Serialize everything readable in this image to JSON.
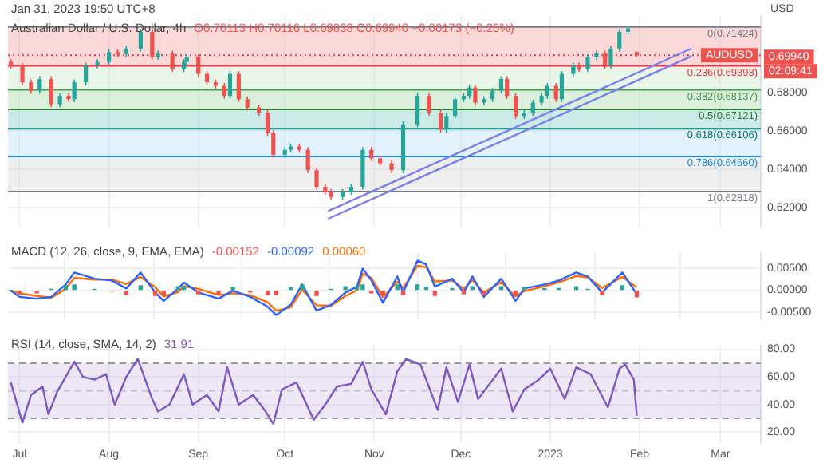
{
  "chart_data": [
    {
      "type": "candlestick",
      "title": "Australian Dollar / U.S. Dollar, 4h",
      "subtitle": "Jan 31, 2023 19:50 UTC+8",
      "ylabel": "USD",
      "annotations": [
        "O0.70113 H0.70116 L0.69838 C0.69940 −0.00173 (−0.25%)",
        "02:09:41",
        {
          "text": "AUDUSD",
          "y": 0.6994
        }
      ],
      "x": [
        "2022-06-28",
        "2022-07-02",
        "2022-07-05",
        "2022-07-08",
        "2022-07-12",
        "2022-07-15",
        "2022-07-18",
        "2022-07-20",
        "2022-07-24",
        "2022-07-28",
        "2022-08-01",
        "2022-08-04",
        "2022-08-07",
        "2022-08-12",
        "2022-08-16",
        "2022-08-18",
        "2022-08-23",
        "2022-08-27",
        "2022-08-28",
        "2022-09-01",
        "2022-09-04",
        "2022-09-07",
        "2022-09-10",
        "2022-09-12",
        "2022-09-15",
        "2022-09-18",
        "2022-09-22",
        "2022-09-25",
        "2022-09-27",
        "2022-10-01",
        "2022-10-03",
        "2022-10-06",
        "2022-10-09",
        "2022-10-12",
        "2022-10-15",
        "2022-10-17",
        "2022-10-21",
        "2022-10-24",
        "2022-10-28",
        "2022-10-31",
        "2022-11-03",
        "2022-11-07",
        "2022-11-11",
        "2022-11-16",
        "2022-11-20",
        "2022-11-24",
        "2022-11-26",
        "2022-11-29",
        "2022-12-02",
        "2022-12-04",
        "2022-12-06",
        "2022-12-09",
        "2022-12-12",
        "2022-12-15",
        "2022-12-17",
        "2022-12-20",
        "2022-12-23",
        "2022-12-26",
        "2022-12-29",
        "2022-12-31",
        "2023-01-03",
        "2023-01-05",
        "2023-01-09",
        "2023-01-11",
        "2023-01-14",
        "2023-01-17",
        "2023-01-20",
        "2023-01-22",
        "2023-01-25",
        "2023-01-28",
        "2023-01-31"
      ],
      "ohlc": [
        [
          0.696,
          0.6975,
          0.6925,
          0.694
        ],
        [
          0.694,
          0.6955,
          0.6838,
          0.6853
        ],
        [
          0.6853,
          0.6868,
          0.6794,
          0.6809
        ],
        [
          0.6809,
          0.6885,
          0.6794,
          0.687
        ],
        [
          0.687,
          0.6885,
          0.6723,
          0.6738
        ],
        [
          0.6738,
          0.6797,
          0.6723,
          0.6782
        ],
        [
          0.6782,
          0.6797,
          0.675,
          0.6765
        ],
        [
          0.6765,
          0.6868,
          0.675,
          0.6853
        ],
        [
          0.6853,
          0.6956,
          0.6838,
          0.6941
        ],
        [
          0.6941,
          0.6974,
          0.6926,
          0.6959
        ],
        [
          0.6959,
          0.7026,
          0.6944,
          0.7011
        ],
        [
          0.7011,
          0.7026,
          0.6985,
          0.7
        ],
        [
          0.7,
          0.7044,
          0.6985,
          0.7029
        ],
        [
          0.7029,
          0.7132,
          0.7014,
          0.7117
        ],
        [
          0.7117,
          0.7132,
          0.697,
          0.6985
        ],
        [
          0.6985,
          0.7018,
          0.697,
          0.7003
        ],
        [
          0.7003,
          0.7018,
          0.6908,
          0.6923
        ],
        [
          0.6923,
          0.6974,
          0.6908,
          0.6959
        ],
        [
          0.6959,
          0.7,
          0.6944,
          0.6985
        ],
        [
          0.6985,
          0.7,
          0.6882,
          0.6897
        ],
        [
          0.6897,
          0.6912,
          0.6838,
          0.6853
        ],
        [
          0.6853,
          0.6868,
          0.682,
          0.6835
        ],
        [
          0.6835,
          0.685,
          0.6767,
          0.6782
        ],
        [
          0.6782,
          0.6912,
          0.6767,
          0.6897
        ],
        [
          0.6897,
          0.6912,
          0.675,
          0.6765
        ],
        [
          0.6765,
          0.678,
          0.6706,
          0.6721
        ],
        [
          0.6721,
          0.6736,
          0.6679,
          0.6694
        ],
        [
          0.6694,
          0.6709,
          0.6574,
          0.6589
        ],
        [
          0.6589,
          0.6604,
          0.6459,
          0.6474
        ],
        [
          0.6474,
          0.6515,
          0.6459,
          0.65
        ],
        [
          0.65,
          0.6533,
          0.6485,
          0.6518
        ],
        [
          0.6518,
          0.6533,
          0.6485,
          0.65
        ],
        [
          0.65,
          0.6515,
          0.6379,
          0.6394
        ],
        [
          0.6394,
          0.6409,
          0.6292,
          0.6307
        ],
        [
          0.6307,
          0.6322,
          0.6265,
          0.628
        ],
        [
          0.628,
          0.6295,
          0.6239,
          0.6254
        ],
        [
          0.6254,
          0.6295,
          0.6239,
          0.628
        ],
        [
          0.628,
          0.6322,
          0.6265,
          0.6307
        ],
        [
          0.6307,
          0.6515,
          0.6292,
          0.65
        ],
        [
          0.65,
          0.6515,
          0.6441,
          0.6456
        ],
        [
          0.6456,
          0.6471,
          0.6415,
          0.643
        ],
        [
          0.643,
          0.6445,
          0.6379,
          0.6394
        ],
        [
          0.6394,
          0.6648,
          0.6379,
          0.6633
        ],
        [
          0.6633,
          0.6797,
          0.6618,
          0.6782
        ],
        [
          0.6782,
          0.6797,
          0.6679,
          0.6694
        ],
        [
          0.6694,
          0.6709,
          0.6591,
          0.6606
        ],
        [
          0.6606,
          0.6692,
          0.6591,
          0.6677
        ],
        [
          0.6677,
          0.678,
          0.6662,
          0.6765
        ],
        [
          0.6765,
          0.6797,
          0.675,
          0.6782
        ],
        [
          0.6782,
          0.6841,
          0.6767,
          0.6826
        ],
        [
          0.6826,
          0.6841,
          0.6732,
          0.6747
        ],
        [
          0.6747,
          0.678,
          0.6732,
          0.6765
        ],
        [
          0.6765,
          0.6824,
          0.675,
          0.6809
        ],
        [
          0.6809,
          0.6885,
          0.6794,
          0.687
        ],
        [
          0.687,
          0.6885,
          0.6767,
          0.6782
        ],
        [
          0.6782,
          0.6797,
          0.6662,
          0.6677
        ],
        [
          0.6677,
          0.6709,
          0.6662,
          0.6694
        ],
        [
          0.6694,
          0.6762,
          0.6679,
          0.6747
        ],
        [
          0.6747,
          0.6797,
          0.6732,
          0.6782
        ],
        [
          0.6782,
          0.685,
          0.6767,
          0.6835
        ],
        [
          0.6835,
          0.685,
          0.675,
          0.6765
        ],
        [
          0.6765,
          0.6912,
          0.675,
          0.6897
        ],
        [
          0.6897,
          0.6956,
          0.6882,
          0.6941
        ],
        [
          0.6941,
          0.6956,
          0.6908,
          0.6923
        ],
        [
          0.6923,
          0.7,
          0.6908,
          0.6985
        ],
        [
          0.6985,
          0.7019,
          0.697,
          0.7004
        ],
        [
          0.7004,
          0.7019,
          0.6926,
          0.6941
        ],
        [
          0.6941,
          0.7044,
          0.6926,
          0.7029
        ],
        [
          0.7029,
          0.7132,
          0.7014,
          0.7117
        ],
        [
          0.7117,
          0.715,
          0.7102,
          0.7135
        ],
        [
          0.70113,
          0.70116,
          0.69838,
          0.6994
        ]
      ],
      "series": [
        {
          "type": "line",
          "color": "#7b7fe8",
          "x": [
            "2022-10-16",
            "2023-02-19"
          ],
          "values": [
            0.614,
            0.699
          ]
        },
        {
          "type": "line",
          "color": "#7b7fe8",
          "x": [
            "2022-10-16",
            "2023-02-19"
          ],
          "values": [
            0.618,
            0.703
          ]
        }
      ],
      "xlim": [
        "2022-06-27",
        "2023-03-15"
      ],
      "xticks": [
        {
          "value": "2022-07-01",
          "label": null
        },
        {
          "value": "2022-08-01",
          "label": null
        },
        {
          "value": "2022-09-01",
          "label": null
        },
        {
          "value": "2022-10-01",
          "label": null
        },
        {
          "value": "2022-11-01",
          "label": null
        },
        {
          "value": "2022-12-01",
          "label": null
        },
        {
          "value": "2023-01-01",
          "label": null
        },
        {
          "value": "2023-02-01",
          "label": null
        },
        {
          "value": "2023-03-01",
          "label": null
        }
      ],
      "ylim": [
        0.61,
        0.72
      ],
      "yticks": [
        {
          "value": 0.62,
          "label": "0.62000"
        },
        {
          "value": 0.64,
          "label": "0.64000"
        },
        {
          "value": 0.66,
          "label": "0.66000"
        },
        {
          "value": 0.68,
          "label": "0.68000"
        }
      ],
      "tick_labels": "y",
      "grid": true,
      "bands": [
        {
          "axis": "y",
          "from": 0.69393,
          "to": 0.71424,
          "color": "#f7a1a1"
        },
        {
          "axis": "y",
          "from": 0.68137,
          "to": 0.69393,
          "color": "#c8e6c9"
        },
        {
          "axis": "y",
          "from": 0.67121,
          "to": 0.68137,
          "color": "#a5d6a7"
        },
        {
          "axis": "y",
          "from": 0.66106,
          "to": 0.67121,
          "color": "#80cbc4"
        },
        {
          "axis": "y",
          "from": 0.6466,
          "to": 0.66106,
          "color": "#bbdefb"
        },
        {
          "axis": "y",
          "from": 0.62818,
          "to": 0.6466,
          "color": "#d6d6d6"
        }
      ],
      "ref_lines": [
        {
          "axis": "y",
          "value": 0.71424,
          "label": "0(0.71424)",
          "color": "#787b86"
        },
        {
          "axis": "y",
          "value": 0.69393,
          "label": "0.236(0.69393)",
          "color": "#f23645"
        },
        {
          "axis": "y",
          "value": 0.68137,
          "label": "0.382(0.68137)",
          "color": "#4c9a50"
        },
        {
          "axis": "y",
          "value": 0.67121,
          "label": "0.5(0.67121)",
          "color": "#2e7d32"
        },
        {
          "axis": "y",
          "value": 0.66106,
          "label": "0.618(0.66106)",
          "color": "#00796b"
        },
        {
          "axis": "y",
          "value": 0.6466,
          "label": "0.786(0.64660)",
          "color": "#1e88e5"
        },
        {
          "axis": "y",
          "value": 0.62818,
          "label": "1(0.62818)",
          "color": "#787b86"
        },
        {
          "axis": "y",
          "value": 0.6994,
          "label": "0.69940",
          "color": "#f23645",
          "line_style": "dotted"
        }
      ]
    },
    {
      "type": "line",
      "title": "MACD (12, 26, close, 9, EMA, EMA)",
      "annotations": [
        "-0.00152",
        "-0.00092",
        "0.00060"
      ],
      "x": [
        "2022-06-28",
        "2022-07-01",
        "2022-07-07",
        "2022-07-12",
        "2022-07-17",
        "2022-07-20",
        "2022-07-27",
        "2022-08-02",
        "2022-08-07",
        "2022-08-12",
        "2022-08-17",
        "2022-08-20",
        "2022-08-25",
        "2022-08-27",
        "2022-09-01",
        "2022-09-08",
        "2022-09-13",
        "2022-09-19",
        "2022-09-25",
        "2022-09-28",
        "2022-10-03",
        "2022-10-07",
        "2022-10-12",
        "2022-10-17",
        "2022-10-22",
        "2022-10-26",
        "2022-10-28",
        "2022-10-31",
        "2022-11-04",
        "2022-11-09",
        "2022-11-11",
        "2022-11-16",
        "2022-11-19",
        "2022-11-22",
        "2022-11-28",
        "2022-12-02",
        "2022-12-05",
        "2022-12-09",
        "2022-12-15",
        "2022-12-20",
        "2022-12-23",
        "2022-12-30",
        "2023-01-04",
        "2023-01-10",
        "2023-01-14",
        "2023-01-19",
        "2023-01-26",
        "2023-01-31"
      ],
      "series": [
        {
          "type": "bar",
          "colors": [
            "#26a69a",
            "#ef5350",
            "#ef5350",
            "#26a69a",
            "#26a69a",
            "#26a69a",
            "#26a69a",
            "#ef5350",
            "#ef5350",
            "#26a69a",
            "#ef5350",
            "#ef5350",
            "#26a69a",
            "#26a69a",
            "#ef5350",
            "#ef5350",
            "#26a69a",
            "#ef5350",
            "#ef5350",
            "#ef5350",
            "#26a69a",
            "#26a69a",
            "#ef5350",
            "#26a69a",
            "#26a69a",
            "#26a69a",
            "#26a69a",
            "#ef5350",
            "#ef5350",
            "#26a69a",
            "#ef5350",
            "#26a69a",
            "#26a69a",
            "#ef5350",
            "#26a69a",
            "#ef5350",
            "#26a69a",
            "#ef5350",
            "#26a69a",
            "#ef5350",
            "#26a69a",
            "#26a69a",
            "#26a69a",
            "#26a69a",
            "#26a69a",
            "#ef5350",
            "#26a69a",
            "#ef5350"
          ],
          "values": [
            0.0,
            -0.0008,
            -0.0006,
            0.0002,
            0.001,
            0.0012,
            0.0002,
            -0.0002,
            -0.001,
            0.001,
            -0.0012,
            -0.001,
            0.0008,
            0.0008,
            -0.0008,
            -0.0008,
            0.0006,
            -0.0004,
            -0.001,
            -0.001,
            0.0006,
            0.0012,
            -0.0012,
            0.0002,
            0.0008,
            0.0008,
            0.0012,
            -0.0006,
            -0.0012,
            0.0012,
            -0.001,
            0.0012,
            0.0006,
            -0.0012,
            0.0004,
            -0.0008,
            0.0008,
            -0.001,
            0.0008,
            -0.001,
            0.0006,
            0.0004,
            0.0004,
            0.0008,
            0.0002,
            -0.001,
            0.001,
            -0.0015
          ]
        },
        {
          "type": "line",
          "color": "#2962ff",
          "values": [
            -0.0001,
            -0.0015,
            -0.0019,
            -0.0015,
            0.0013,
            0.004,
            0.0026,
            0.0022,
            0.0004,
            0.004,
            -0.0005,
            -0.0024,
            0.0004,
            0.0017,
            -0.0005,
            -0.0019,
            -0.0001,
            -0.0015,
            -0.0037,
            -0.0056,
            -0.0033,
            0.0013,
            -0.0046,
            -0.0033,
            -0.0005,
            0.0008,
            0.0049,
            0.0022,
            -0.0028,
            0.0031,
            -0.0005,
            0.0067,
            0.0058,
            0.0008,
            0.0026,
            -0.0005,
            0.0031,
            -0.0015,
            0.0026,
            -0.0024,
            0.0004,
            0.0013,
            0.0022,
            0.004,
            0.0031,
            -0.0005,
            0.004,
            -0.0009
          ]
        },
        {
          "type": "line",
          "color": "#ff6d00",
          "values": [
            -0.0001,
            -0.0007,
            -0.0013,
            -0.0017,
            0.0003,
            0.0028,
            0.0024,
            0.0024,
            0.0014,
            0.003,
            0.0007,
            -0.0014,
            -0.0004,
            0.0009,
            0.0003,
            -0.0011,
            -0.0007,
            -0.0011,
            -0.0027,
            -0.0046,
            -0.0039,
            0.0001,
            -0.0034,
            -0.0035,
            -0.0013,
            0.0,
            0.0037,
            0.0028,
            -0.0016,
            0.0019,
            0.0005,
            0.0055,
            0.0052,
            0.002,
            0.0022,
            0.0003,
            0.0023,
            -0.0005,
            0.0018,
            -0.0014,
            -0.0002,
            0.0009,
            0.0018,
            0.0032,
            0.0029,
            0.0005,
            0.003,
            0.0006
          ]
        }
      ],
      "xlim": [
        "2022-06-27",
        "2023-03-15"
      ],
      "xticks": [
        {
          "value": "2022-07-01",
          "label": null
        },
        {
          "value": "2022-08-01",
          "label": null
        },
        {
          "value": "2022-09-01",
          "label": null
        },
        {
          "value": "2022-10-01",
          "label": null
        },
        {
          "value": "2022-11-01",
          "label": null
        },
        {
          "value": "2022-12-01",
          "label": null
        },
        {
          "value": "2023-01-01",
          "label": null
        },
        {
          "value": "2023-02-01",
          "label": null
        },
        {
          "value": "2023-03-01",
          "label": null
        }
      ],
      "ylim": [
        -0.0065,
        0.0085
      ],
      "yticks": [
        {
          "value": -0.005,
          "label": "-0.00500"
        },
        {
          "value": 0,
          "label": "0.00000"
        },
        {
          "value": 0.005,
          "label": "0.00500"
        }
      ],
      "tick_labels": "y",
      "grid": true
    },
    {
      "type": "line",
      "title": "RSI (14, close, SMA, 14, 2)",
      "annotations": [
        "31.91"
      ],
      "x": [
        "2022-06-28",
        "2022-07-02",
        "2022-07-05",
        "2022-07-09",
        "2022-07-11",
        "2022-07-14",
        "2022-07-17",
        "2022-07-20",
        "2022-07-23",
        "2022-07-27",
        "2022-07-31",
        "2022-08-03",
        "2022-08-07",
        "2022-08-11",
        "2022-08-16",
        "2022-08-18",
        "2022-08-22",
        "2022-08-27",
        "2022-08-30",
        "2022-09-04",
        "2022-09-08",
        "2022-09-11",
        "2022-09-15",
        "2022-09-20",
        "2022-09-24",
        "2022-09-27",
        "2022-09-30",
        "2022-10-05",
        "2022-10-11",
        "2022-10-15",
        "2022-10-19",
        "2022-10-24",
        "2022-10-28",
        "2022-10-31",
        "2022-11-05",
        "2022-11-09",
        "2022-11-12",
        "2022-11-17",
        "2022-11-23",
        "2022-11-26",
        "2022-11-30",
        "2022-12-04",
        "2022-12-07",
        "2022-12-15",
        "2022-12-19",
        "2022-12-23",
        "2022-12-28",
        "2023-01-01",
        "2023-01-06",
        "2023-01-10",
        "2023-01-15",
        "2023-01-21",
        "2023-01-25",
        "2023-01-27",
        "2023-01-30",
        "2023-01-31"
      ],
      "series": [
        {
          "color": "#7e57c2",
          "values": [
            56,
            27,
            47,
            53,
            33,
            49,
            60,
            71,
            60,
            58,
            62,
            40,
            60,
            73,
            44,
            35,
            40,
            62,
            40,
            47,
            35,
            67,
            40,
            47,
            36,
            26,
            51,
            56,
            29,
            40,
            53,
            55,
            71,
            51,
            33,
            64,
            73,
            69,
            36,
            67,
            42,
            69,
            44,
            66,
            35,
            51,
            58,
            66,
            44,
            67,
            62,
            38,
            66,
            69,
            58,
            31.91
          ]
        }
      ],
      "xlim": [
        "2022-06-27",
        "2023-03-15"
      ],
      "xticks": [
        {
          "value": "2022-07-01",
          "label": "Jul"
        },
        {
          "value": "2022-08-01",
          "label": "Aug"
        },
        {
          "value": "2022-09-01",
          "label": "Sep"
        },
        {
          "value": "2022-10-01",
          "label": "Oct"
        },
        {
          "value": "2022-11-01",
          "label": "Nov"
        },
        {
          "value": "2022-12-01",
          "label": "Dec"
        },
        {
          "value": "2023-01-01",
          "label": "2023"
        },
        {
          "value": "2023-02-01",
          "label": "Feb"
        },
        {
          "value": "2023-03-01",
          "label": "Mar"
        }
      ],
      "ylim": [
        12,
        83
      ],
      "yticks": [
        {
          "value": 20,
          "label": "20.00"
        },
        {
          "value": 40,
          "label": "40.00"
        },
        {
          "value": 60,
          "label": "60.00"
        },
        {
          "value": 80,
          "label": "80.00"
        }
      ],
      "grid": true,
      "bands": [
        {
          "axis": "y",
          "from": 30,
          "to": 70,
          "color": "#d1c4e9"
        }
      ],
      "ref_lines": [
        {
          "axis": "y",
          "value": 70,
          "color": "#9598a1",
          "line_style": "dashed"
        },
        {
          "axis": "y",
          "value": 50,
          "color": "#c0c3cc",
          "line_style": "dashed"
        },
        {
          "axis": "y",
          "value": 30,
          "color": "#9598a1",
          "line_style": "dashed"
        }
      ]
    }
  ]
}
